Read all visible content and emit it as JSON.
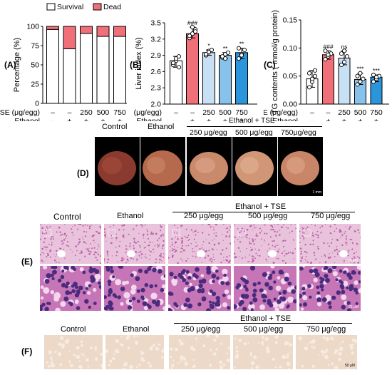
{
  "panels": {
    "A": "(A)",
    "B": "(B)",
    "C": "(C)",
    "D": "(D)",
    "E": "(E)",
    "F": "(F)"
  },
  "chartA": {
    "legend": {
      "survival": "Survival",
      "dead": "Dead"
    },
    "ylabel": "Percentage (%)",
    "yticks": [
      "0",
      "25",
      "50",
      "75",
      "100"
    ],
    "colors": {
      "survival": "#ffffff",
      "dead": "#f0707a"
    }
  },
  "chartB": {
    "ylabel": "Liver index (%)",
    "yticks": [
      "2.0",
      "2.3",
      "2.6",
      "2.9",
      "3.2",
      "3.5"
    ],
    "stars": [
      "",
      "###",
      "*",
      "**",
      "**"
    ],
    "colors": [
      "#ffffff",
      "#f0707a",
      "#c8e0f4",
      "#86c2ec",
      "#2b95dc"
    ]
  },
  "chartC": {
    "ylabel": "TG contents ( mmol/g protein)",
    "yticks": [
      "0.00",
      "0.05",
      "0.10",
      "0.15"
    ],
    "stars": [
      "",
      "###",
      "ns",
      "***",
      "***"
    ],
    "colors": [
      "#ffffff",
      "#f0707a",
      "#c8e0f4",
      "#86c2ec",
      "#2b95dc"
    ]
  },
  "xaxis": {
    "tse_label": "TSE (μg/egg)",
    "eth_label": "Ethanol",
    "tse_values": [
      "–",
      "–",
      "250",
      "500",
      "750"
    ],
    "eth_values": [
      "–",
      "+",
      "+",
      "+",
      "+"
    ]
  },
  "chart_data": [
    {
      "type": "bar",
      "categories": [
        "Control",
        "Ethanol",
        "250",
        "500",
        "750"
      ],
      "series": [
        {
          "name": "Survival",
          "values": [
            96,
            71,
            91,
            87,
            87
          ]
        },
        {
          "name": "Dead",
          "values": [
            4,
            29,
            9,
            13,
            13
          ]
        }
      ],
      "ylabel": "Percentage (%)",
      "ylim": [
        0,
        100
      ],
      "legend": "top"
    },
    {
      "type": "bar",
      "categories": [
        "Control",
        "Ethanol",
        "250",
        "500",
        "750"
      ],
      "values": [
        2.8,
        3.3,
        2.95,
        2.9,
        2.95
      ],
      "points": [
        [
          2.72,
          2.8,
          2.88,
          2.76,
          2.84,
          2.68
        ],
        [
          3.22,
          3.3,
          3.38,
          3.26,
          3.42,
          3.34
        ],
        [
          2.9,
          2.98,
          3.0,
          2.92,
          2.96
        ],
        [
          2.86,
          2.92,
          2.95,
          2.88,
          2.84
        ],
        [
          2.84,
          2.92,
          3.0,
          3.03,
          2.9
        ]
      ],
      "ylabel": "Liver index (%)",
      "ylim": [
        2.0,
        3.5
      ]
    },
    {
      "type": "bar",
      "categories": [
        "Control",
        "Ethanol",
        "250",
        "500",
        "750"
      ],
      "values": [
        0.045,
        0.088,
        0.082,
        0.044,
        0.048
      ],
      "points": [
        [
          0.03,
          0.04,
          0.05,
          0.055,
          0.045,
          0.06
        ],
        [
          0.08,
          0.085,
          0.09,
          0.095,
          0.088
        ],
        [
          0.07,
          0.075,
          0.085,
          0.09,
          0.095
        ],
        [
          0.035,
          0.04,
          0.045,
          0.05,
          0.055
        ],
        [
          0.04,
          0.045,
          0.05,
          0.052,
          0.048
        ]
      ],
      "ylabel": "TG contents ( mmol/g protein)",
      "ylim": [
        0,
        0.15
      ]
    }
  ],
  "panelD": {
    "group_label": "Ethanol + TSE",
    "labels": [
      "Control",
      "Ethanol",
      "250 μg/egg",
      "500 μg/egg",
      "750μg/egg"
    ],
    "scale": "1 mm"
  },
  "panelE": {
    "group_label": "Ethanol + TSE",
    "labels": [
      "Control",
      "Ethanol",
      "250 μg/egg",
      "500 μg/egg",
      "750 μg/egg"
    ],
    "scale_top": "70 μm",
    "scale_bot": "25 μM"
  },
  "panelF": {
    "group_label": "Ethanol + TSE",
    "labels": [
      "Control",
      "Ethanol",
      "250 μg/egg",
      "500 μg/egg",
      "750 μg/egg"
    ],
    "scale": "50 μM"
  }
}
